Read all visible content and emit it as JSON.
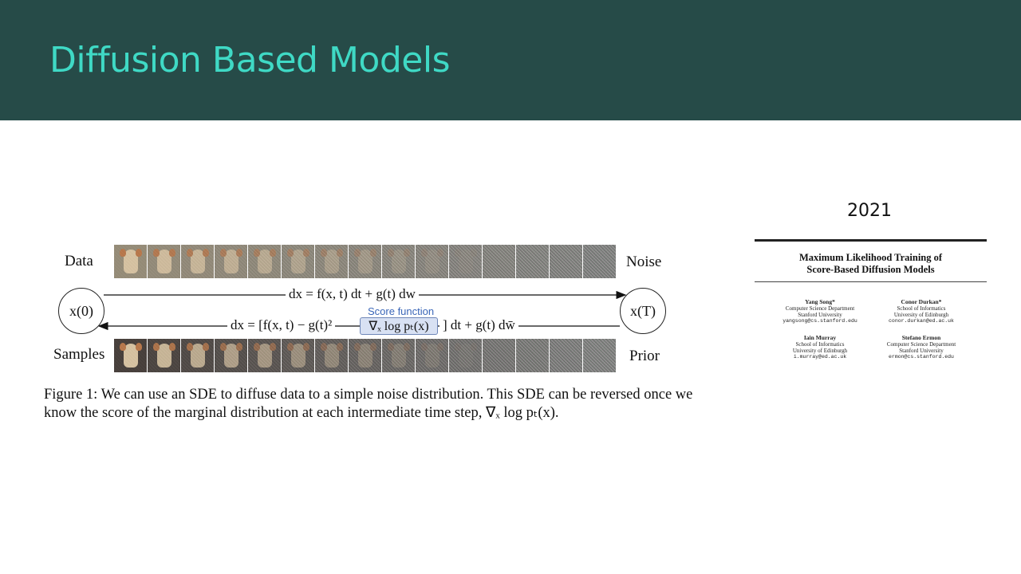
{
  "slide": {
    "title": "Diffusion Based Models"
  },
  "figure": {
    "label_data": "Data",
    "label_noise": "Noise",
    "label_samples": "Samples",
    "label_prior": "Prior",
    "node_left": "x(0)",
    "node_right": "x(T)",
    "forward_eq": "dx = f(x, t) dt + g(t) dw",
    "reverse_eq_pre": "dx = [f(x, t) − g(t)²",
    "reverse_eq_post": "] dt + g(t) dw̄",
    "score_term": "∇ₓ log pₜ(x)",
    "score_label": "Score function",
    "caption": "Figure 1: We can use an SDE to diffuse data to a simple noise distribution. This SDE can be reversed once we know the score of the marginal distribution at each intermediate time step, ∇ₓ log pₜ(x)."
  },
  "paper": {
    "year": "2021",
    "title_line1": "Maximum Likelihood Training of",
    "title_line2": "Score-Based Diffusion Models",
    "authors": [
      {
        "name": "Yang Song*",
        "line1": "Computer Science Department",
        "line2": "Stanford University",
        "email": "yangsong@cs.stanford.edu"
      },
      {
        "name": "Conor Durkan*",
        "line1": "School of Informatics",
        "line2": "University of Edinburgh",
        "email": "conor.durkan@ed.ac.uk"
      },
      {
        "name": "Iain Murray",
        "line1": "School of Informatics",
        "line2": "University of Edinburgh",
        "email": "i.murray@ed.ac.uk"
      },
      {
        "name": "Stefano Ermon",
        "line1": "Computer Science Department",
        "line2": "Stanford University",
        "email": "ermon@cs.stanford.edu"
      }
    ]
  }
}
